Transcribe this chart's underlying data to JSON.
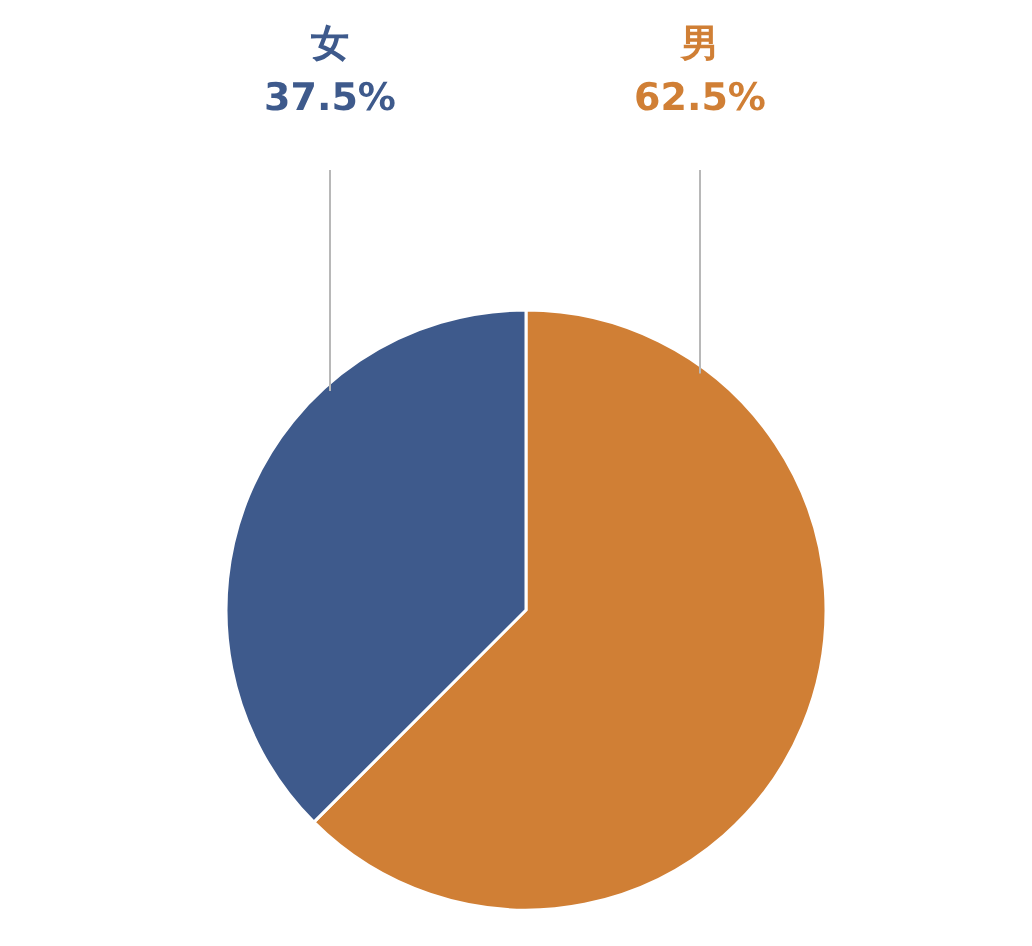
{
  "chart_data": {
    "type": "pie",
    "categories": [
      "女",
      "男"
    ],
    "values": [
      37.5,
      62.5
    ],
    "colors": [
      "#3e5a8c",
      "#d07f35"
    ],
    "value_labels": [
      "37.5%",
      "62.5%"
    ]
  }
}
